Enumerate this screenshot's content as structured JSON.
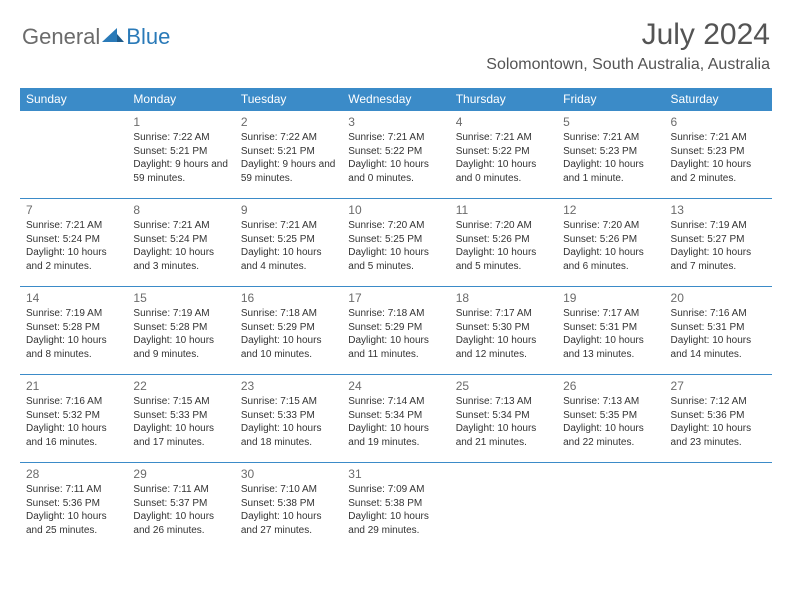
{
  "logo": {
    "general": "General",
    "blue": "Blue"
  },
  "title": "July 2024",
  "location": "Solomontown, South Australia, Australia",
  "colors": {
    "header_bg": "#3b8bc8",
    "header_text": "#ffffff",
    "border": "#3b8bc8",
    "text": "#333333",
    "title": "#545454",
    "logo_gray": "#6b6b6b",
    "logo_blue": "#2a7ab8"
  },
  "weekdays": [
    "Sunday",
    "Monday",
    "Tuesday",
    "Wednesday",
    "Thursday",
    "Friday",
    "Saturday"
  ],
  "weeks": [
    [
      null,
      {
        "n": "1",
        "sr": "Sunrise: 7:22 AM",
        "ss": "Sunset: 5:21 PM",
        "dl": "Daylight: 9 hours and 59 minutes."
      },
      {
        "n": "2",
        "sr": "Sunrise: 7:22 AM",
        "ss": "Sunset: 5:21 PM",
        "dl": "Daylight: 9 hours and 59 minutes."
      },
      {
        "n": "3",
        "sr": "Sunrise: 7:21 AM",
        "ss": "Sunset: 5:22 PM",
        "dl": "Daylight: 10 hours and 0 minutes."
      },
      {
        "n": "4",
        "sr": "Sunrise: 7:21 AM",
        "ss": "Sunset: 5:22 PM",
        "dl": "Daylight: 10 hours and 0 minutes."
      },
      {
        "n": "5",
        "sr": "Sunrise: 7:21 AM",
        "ss": "Sunset: 5:23 PM",
        "dl": "Daylight: 10 hours and 1 minute."
      },
      {
        "n": "6",
        "sr": "Sunrise: 7:21 AM",
        "ss": "Sunset: 5:23 PM",
        "dl": "Daylight: 10 hours and 2 minutes."
      }
    ],
    [
      {
        "n": "7",
        "sr": "Sunrise: 7:21 AM",
        "ss": "Sunset: 5:24 PM",
        "dl": "Daylight: 10 hours and 2 minutes."
      },
      {
        "n": "8",
        "sr": "Sunrise: 7:21 AM",
        "ss": "Sunset: 5:24 PM",
        "dl": "Daylight: 10 hours and 3 minutes."
      },
      {
        "n": "9",
        "sr": "Sunrise: 7:21 AM",
        "ss": "Sunset: 5:25 PM",
        "dl": "Daylight: 10 hours and 4 minutes."
      },
      {
        "n": "10",
        "sr": "Sunrise: 7:20 AM",
        "ss": "Sunset: 5:25 PM",
        "dl": "Daylight: 10 hours and 5 minutes."
      },
      {
        "n": "11",
        "sr": "Sunrise: 7:20 AM",
        "ss": "Sunset: 5:26 PM",
        "dl": "Daylight: 10 hours and 5 minutes."
      },
      {
        "n": "12",
        "sr": "Sunrise: 7:20 AM",
        "ss": "Sunset: 5:26 PM",
        "dl": "Daylight: 10 hours and 6 minutes."
      },
      {
        "n": "13",
        "sr": "Sunrise: 7:19 AM",
        "ss": "Sunset: 5:27 PM",
        "dl": "Daylight: 10 hours and 7 minutes."
      }
    ],
    [
      {
        "n": "14",
        "sr": "Sunrise: 7:19 AM",
        "ss": "Sunset: 5:28 PM",
        "dl": "Daylight: 10 hours and 8 minutes."
      },
      {
        "n": "15",
        "sr": "Sunrise: 7:19 AM",
        "ss": "Sunset: 5:28 PM",
        "dl": "Daylight: 10 hours and 9 minutes."
      },
      {
        "n": "16",
        "sr": "Sunrise: 7:18 AM",
        "ss": "Sunset: 5:29 PM",
        "dl": "Daylight: 10 hours and 10 minutes."
      },
      {
        "n": "17",
        "sr": "Sunrise: 7:18 AM",
        "ss": "Sunset: 5:29 PM",
        "dl": "Daylight: 10 hours and 11 minutes."
      },
      {
        "n": "18",
        "sr": "Sunrise: 7:17 AM",
        "ss": "Sunset: 5:30 PM",
        "dl": "Daylight: 10 hours and 12 minutes."
      },
      {
        "n": "19",
        "sr": "Sunrise: 7:17 AM",
        "ss": "Sunset: 5:31 PM",
        "dl": "Daylight: 10 hours and 13 minutes."
      },
      {
        "n": "20",
        "sr": "Sunrise: 7:16 AM",
        "ss": "Sunset: 5:31 PM",
        "dl": "Daylight: 10 hours and 14 minutes."
      }
    ],
    [
      {
        "n": "21",
        "sr": "Sunrise: 7:16 AM",
        "ss": "Sunset: 5:32 PM",
        "dl": "Daylight: 10 hours and 16 minutes."
      },
      {
        "n": "22",
        "sr": "Sunrise: 7:15 AM",
        "ss": "Sunset: 5:33 PM",
        "dl": "Daylight: 10 hours and 17 minutes."
      },
      {
        "n": "23",
        "sr": "Sunrise: 7:15 AM",
        "ss": "Sunset: 5:33 PM",
        "dl": "Daylight: 10 hours and 18 minutes."
      },
      {
        "n": "24",
        "sr": "Sunrise: 7:14 AM",
        "ss": "Sunset: 5:34 PM",
        "dl": "Daylight: 10 hours and 19 minutes."
      },
      {
        "n": "25",
        "sr": "Sunrise: 7:13 AM",
        "ss": "Sunset: 5:34 PM",
        "dl": "Daylight: 10 hours and 21 minutes."
      },
      {
        "n": "26",
        "sr": "Sunrise: 7:13 AM",
        "ss": "Sunset: 5:35 PM",
        "dl": "Daylight: 10 hours and 22 minutes."
      },
      {
        "n": "27",
        "sr": "Sunrise: 7:12 AM",
        "ss": "Sunset: 5:36 PM",
        "dl": "Daylight: 10 hours and 23 minutes."
      }
    ],
    [
      {
        "n": "28",
        "sr": "Sunrise: 7:11 AM",
        "ss": "Sunset: 5:36 PM",
        "dl": "Daylight: 10 hours and 25 minutes."
      },
      {
        "n": "29",
        "sr": "Sunrise: 7:11 AM",
        "ss": "Sunset: 5:37 PM",
        "dl": "Daylight: 10 hours and 26 minutes."
      },
      {
        "n": "30",
        "sr": "Sunrise: 7:10 AM",
        "ss": "Sunset: 5:38 PM",
        "dl": "Daylight: 10 hours and 27 minutes."
      },
      {
        "n": "31",
        "sr": "Sunrise: 7:09 AM",
        "ss": "Sunset: 5:38 PM",
        "dl": "Daylight: 10 hours and 29 minutes."
      },
      null,
      null,
      null
    ]
  ]
}
